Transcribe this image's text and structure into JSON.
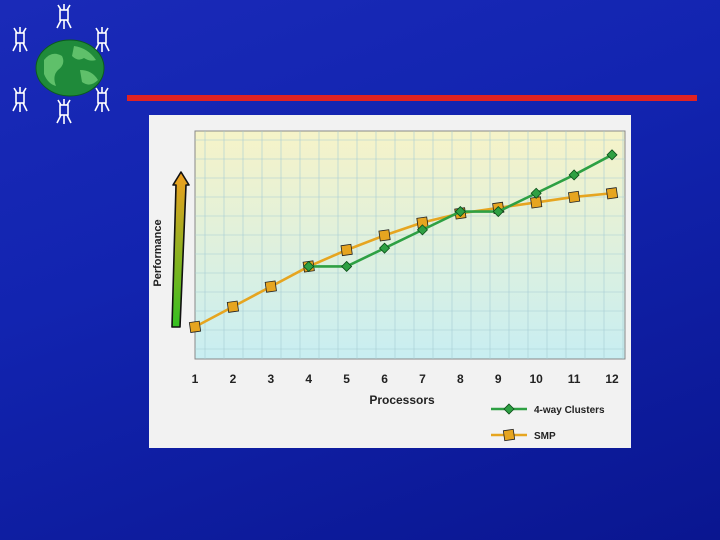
{
  "chart_data": {
    "type": "line",
    "x": [
      1,
      2,
      3,
      4,
      5,
      6,
      7,
      8,
      9,
      10,
      11,
      12
    ],
    "xlabel": "Processors",
    "ylabel": "Performance",
    "xlim": [
      1,
      12
    ],
    "ylim": [
      0,
      100
    ],
    "grid": true,
    "legend_position": "bottom-right",
    "series": [
      {
        "name": "4-way Clusters",
        "color": "#2ea043",
        "marker": "diamond",
        "x": [
          4,
          5,
          6,
          7,
          8,
          9,
          10,
          11,
          12
        ],
        "values": [
          38,
          38,
          48,
          58,
          68,
          68,
          78,
          88,
          99
        ]
      },
      {
        "name": "SMP",
        "color": "#e6a520",
        "marker": "square",
        "x": [
          1,
          2,
          3,
          4,
          5,
          6,
          7,
          8,
          9,
          10,
          11,
          12
        ],
        "values": [
          5,
          16,
          27,
          38,
          47,
          55,
          62,
          67,
          70,
          73,
          76,
          78
        ]
      }
    ]
  },
  "colors": {
    "background": "#1224b0",
    "rule": "#e02222",
    "plot_bg_top": "#f6f3c8",
    "plot_bg_bottom": "#c8eef2",
    "grid": "#a6ccd4"
  },
  "icons": {
    "logo": "globe-network-icon",
    "performance_arrow": "up-arrow-icon"
  }
}
